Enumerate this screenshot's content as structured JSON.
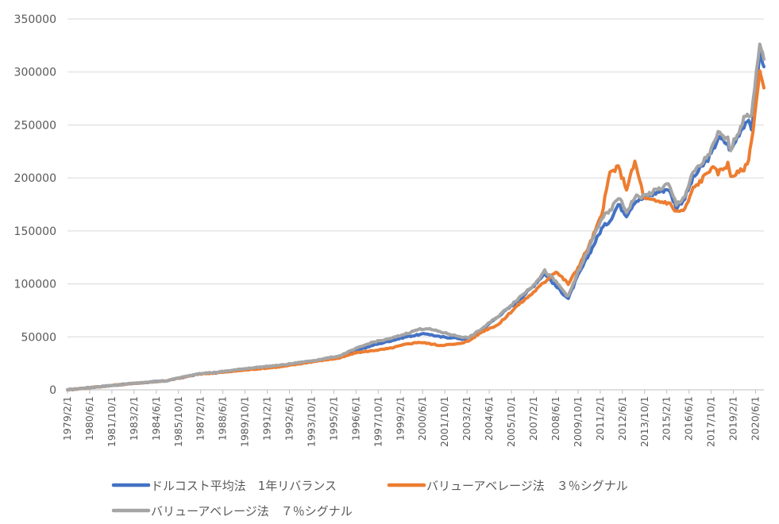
{
  "chart_data": {
    "type": "line",
    "title": "",
    "xlabel": "",
    "ylabel": "",
    "ylim": [
      0,
      350000
    ],
    "yticks": [
      "0",
      "50000",
      "100000",
      "150000",
      "200000",
      "250000",
      "300000",
      "350000"
    ],
    "xticks": [
      "1979/2/1",
      "1980/6/1",
      "1981/10/1",
      "1983/2/1",
      "1984/6/1",
      "1985/10/1",
      "1987/2/1",
      "1988/6/1",
      "1989/10/1",
      "1991/2/1",
      "1992/6/1",
      "1993/10/1",
      "1995/2/1",
      "1996/6/1",
      "1997/10/1",
      "1999/2/1",
      "2000/6/1",
      "2001/10/1",
      "2003/2/1",
      "2004/6/1",
      "2005/10/1",
      "2007/2/1",
      "2008/6/1",
      "2009/10/1",
      "2011/2/1",
      "2012/6/1",
      "2013/10/1",
      "2015/2/1",
      "2016/6/1",
      "2017/10/1",
      "2019/2/1",
      "2020/6/1"
    ],
    "xrange": [
      "1979/2/1",
      "2020/12/1"
    ],
    "grid": "horizontal",
    "legend_position": "bottom",
    "series": [
      {
        "name": "ドルコスト平均法　1年リバランス",
        "color": "#4472C4",
        "x": [
          "1979/2/1",
          "1981/1/1",
          "1983/1/1",
          "1985/1/1",
          "1987/1/1",
          "1988/1/1",
          "1990/1/1",
          "1992/1/1",
          "1994/1/1",
          "1995/6/1",
          "1996/6/1",
          "1997/6/1",
          "1998/6/1",
          "1999/6/1",
          "2000/3/1",
          "2000/9/1",
          "2001/6/1",
          "2002/6/1",
          "2003/3/1",
          "2004/1/1",
          "2005/1/1",
          "2006/1/1",
          "2007/1/1",
          "2007/10/1",
          "2008/6/1",
          "2009/3/1",
          "2009/9/1",
          "2010/6/1",
          "2011/3/1",
          "2011/9/1",
          "2012/3/1",
          "2012/9/1",
          "2013/3/1",
          "2013/10/1",
          "2014/6/1",
          "2015/3/1",
          "2015/9/1",
          "2016/3/1",
          "2016/9/1",
          "2017/3/1",
          "2017/10/1",
          "2018/3/1",
          "2018/10/1",
          "2018/12/1",
          "2019/6/1",
          "2019/12/1",
          "2020/3/1",
          "2020/9/1",
          "2020/12/1"
        ],
        "y": [
          0,
          3000,
          6000,
          8500,
          15000,
          16000,
          20000,
          23000,
          27000,
          31000,
          37000,
          42000,
          46000,
          50000,
          52000,
          53000,
          50000,
          49000,
          47000,
          57000,
          70000,
          82000,
          97000,
          110000,
          98000,
          86000,
          105000,
          128000,
          152000,
          160000,
          175000,
          165000,
          178000,
          181000,
          186000,
          190000,
          172000,
          181000,
          200000,
          210000,
          222000,
          238000,
          232000,
          225000,
          242000,
          255000,
          245000,
          318000,
          305000
        ]
      },
      {
        "name": "バリューアベレージ法　３％シグナル",
        "color": "#ED7D31",
        "x": [
          "1979/2/1",
          "1981/1/1",
          "1983/1/1",
          "1985/1/1",
          "1987/1/1",
          "1988/1/1",
          "1990/1/1",
          "1992/1/1",
          "1994/1/1",
          "1995/6/1",
          "1996/6/1",
          "1997/6/1",
          "1998/6/1",
          "1999/6/1",
          "2000/3/1",
          "2000/9/1",
          "2001/6/1",
          "2002/6/1",
          "2003/3/1",
          "2004/1/1",
          "2005/1/1",
          "2006/1/1",
          "2007/1/1",
          "2007/10/1",
          "2008/6/1",
          "2009/3/1",
          "2009/9/1",
          "2010/6/1",
          "2011/3/1",
          "2011/9/1",
          "2012/3/1",
          "2012/9/1",
          "2013/3/1",
          "2013/10/1",
          "2014/6/1",
          "2015/3/1",
          "2015/9/1",
          "2016/3/1",
          "2016/9/1",
          "2017/3/1",
          "2017/10/1",
          "2018/3/1",
          "2018/10/1",
          "2018/12/1",
          "2019/6/1",
          "2019/12/1",
          "2020/3/1",
          "2020/9/1",
          "2020/12/1"
        ],
        "y": [
          0,
          3000,
          6000,
          8500,
          15000,
          16000,
          19000,
          22000,
          27000,
          30000,
          35000,
          37000,
          39000,
          43000,
          45000,
          44000,
          42000,
          43000,
          46000,
          55000,
          62000,
          78000,
          91000,
          102000,
          112000,
          100000,
          113000,
          136000,
          165000,
          205000,
          210000,
          190000,
          215000,
          180000,
          178000,
          177000,
          168000,
          170000,
          190000,
          198000,
          210000,
          205000,
          213000,
          202000,
          205000,
          212000,
          234000,
          300000,
          285000
        ]
      },
      {
        "name": "バリューアベレージ法　７％シグナル",
        "color": "#A5A5A5",
        "x": [
          "1979/2/1",
          "1981/1/1",
          "1983/1/1",
          "1985/1/1",
          "1987/1/1",
          "1988/1/1",
          "1990/1/1",
          "1992/1/1",
          "1994/1/1",
          "1995/6/1",
          "1996/6/1",
          "1997/6/1",
          "1998/6/1",
          "1999/6/1",
          "2000/3/1",
          "2000/9/1",
          "2001/6/1",
          "2002/6/1",
          "2003/3/1",
          "2004/1/1",
          "2005/1/1",
          "2006/1/1",
          "2007/1/1",
          "2007/10/1",
          "2008/6/1",
          "2009/3/1",
          "2009/9/1",
          "2010/6/1",
          "2011/3/1",
          "2011/9/1",
          "2012/3/1",
          "2012/9/1",
          "2013/3/1",
          "2013/10/1",
          "2014/6/1",
          "2015/3/1",
          "2015/9/1",
          "2016/3/1",
          "2016/9/1",
          "2017/3/1",
          "2017/10/1",
          "2018/3/1",
          "2018/10/1",
          "2018/12/1",
          "2019/6/1",
          "2019/12/1",
          "2020/3/1",
          "2020/9/1",
          "2020/12/1"
        ],
        "y": [
          0,
          3000,
          6000,
          8500,
          15500,
          16500,
          20500,
          23500,
          28000,
          32000,
          39000,
          45000,
          48000,
          53000,
          57000,
          58000,
          55000,
          51000,
          49000,
          58000,
          70000,
          84000,
          98000,
          112000,
          102000,
          88000,
          108000,
          134000,
          162000,
          168000,
          182000,
          168000,
          182000,
          183000,
          188000,
          194000,
          175000,
          183000,
          205000,
          213000,
          226000,
          242000,
          236000,
          228000,
          245000,
          262000,
          258000,
          325000,
          312000
        ]
      }
    ]
  }
}
